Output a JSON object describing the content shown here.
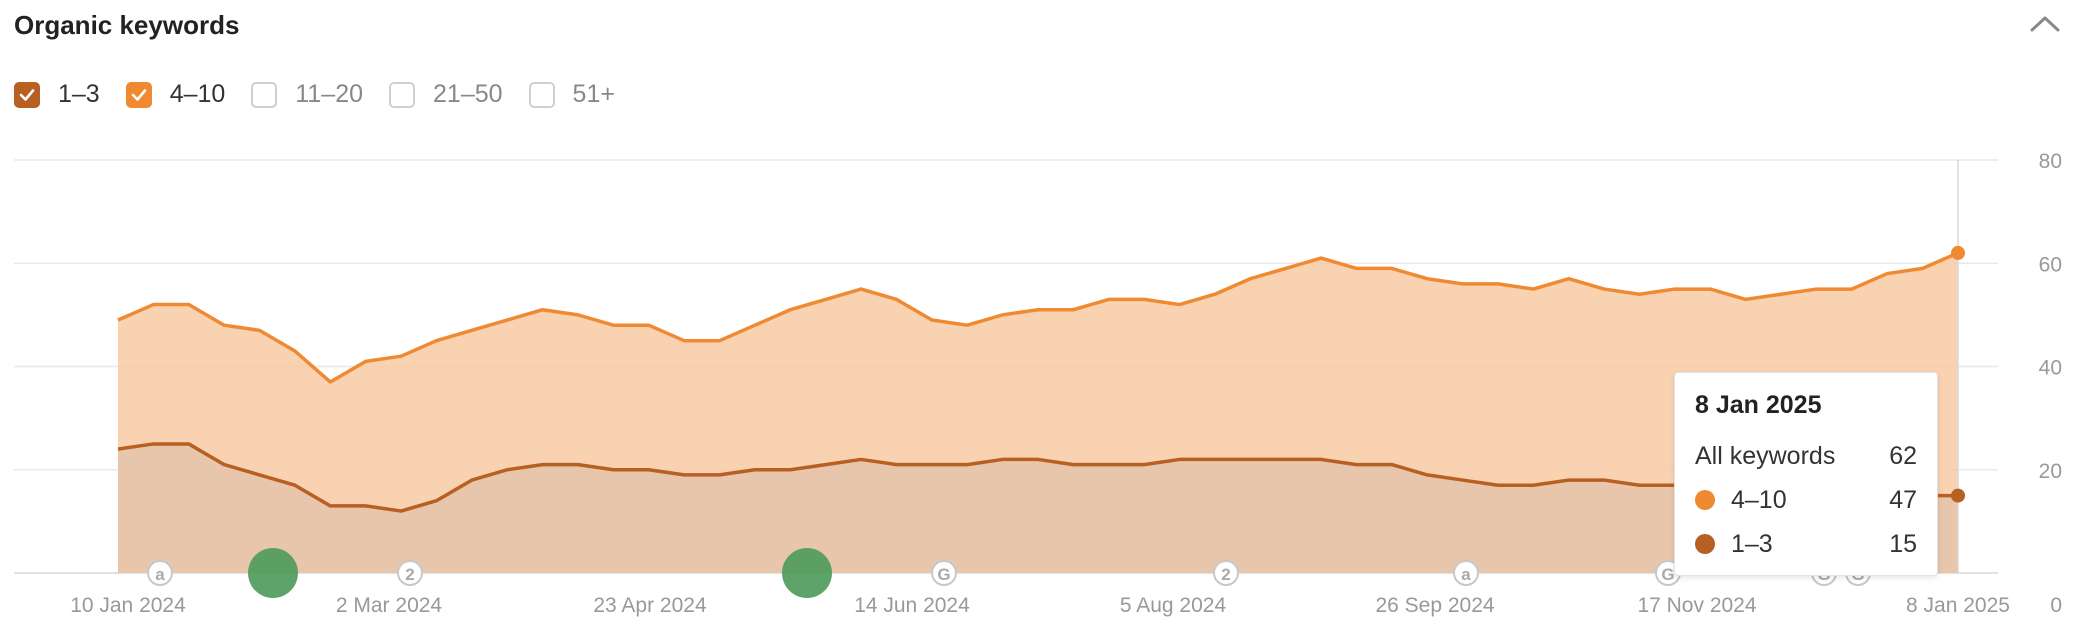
{
  "header": {
    "title": "Organic keywords"
  },
  "filters": [
    {
      "label": "1–3",
      "checked": true,
      "color": "#b85f22"
    },
    {
      "label": "4–10",
      "checked": true,
      "color": "#f08a32"
    },
    {
      "label": "11–20",
      "checked": false
    },
    {
      "label": "21–50",
      "checked": false
    },
    {
      "label": "51+",
      "checked": false
    }
  ],
  "tooltip": {
    "date": "8 Jan 2025",
    "rows": [
      {
        "label": "All keywords",
        "value": "62"
      },
      {
        "label": "4–10",
        "value": "47",
        "color": "#f08a32"
      },
      {
        "label": "1–3",
        "value": "15",
        "color": "#b85f22"
      }
    ]
  },
  "chart_data": {
    "type": "area",
    "stacked": true,
    "x_tick_labels": [
      "10 Jan 2024",
      "2 Mar 2024",
      "23 Apr 2024",
      "14 Jun 2024",
      "5 Aug 2024",
      "26 Sep 2024",
      "17 Nov 2024",
      "8 Jan 2025"
    ],
    "y_tick_labels": [
      "0",
      "20",
      "40",
      "60",
      "80"
    ],
    "ylim": [
      0,
      80
    ],
    "grid": true,
    "y_axis_position": "right",
    "dates": [
      "10 Jan 2024",
      "17 Jan 2024",
      "24 Jan 2024",
      "31 Jan 2024",
      "7 Feb 2024",
      "14 Feb 2024",
      "21 Feb 2024",
      "28 Feb 2024",
      "6 Mar 2024",
      "13 Mar 2024",
      "20 Mar 2024",
      "27 Mar 2024",
      "3 Apr 2024",
      "10 Apr 2024",
      "17 Apr 2024",
      "24 Apr 2024",
      "1 May 2024",
      "8 May 2024",
      "15 May 2024",
      "22 May 2024",
      "29 May 2024",
      "5 Jun 2024",
      "12 Jun 2024",
      "19 Jun 2024",
      "26 Jun 2024",
      "3 Jul 2024",
      "10 Jul 2024",
      "17 Jul 2024",
      "24 Jul 2024",
      "31 Jul 2024",
      "7 Aug 2024",
      "14 Aug 2024",
      "21 Aug 2024",
      "28 Aug 2024",
      "4 Sep 2024",
      "11 Sep 2024",
      "18 Sep 2024",
      "25 Sep 2024",
      "2 Oct 2024",
      "9 Oct 2024",
      "16 Oct 2024",
      "23 Oct 2024",
      "30 Oct 2024",
      "6 Nov 2024",
      "13 Nov 2024",
      "20 Nov 2024",
      "27 Nov 2024",
      "4 Dec 2024",
      "11 Dec 2024",
      "18 Dec 2024",
      "25 Dec 2024",
      "1 Jan 2025",
      "8 Jan 2025"
    ],
    "series": [
      {
        "name": "1–3",
        "color": "#b85f22",
        "values": [
          24,
          25,
          25,
          21,
          19,
          17,
          13,
          13,
          12,
          14,
          18,
          20,
          21,
          21,
          20,
          20,
          19,
          19,
          20,
          20,
          21,
          22,
          21,
          21,
          21,
          22,
          22,
          21,
          21,
          21,
          22,
          22,
          22,
          22,
          22,
          21,
          21,
          19,
          18,
          17,
          17,
          18,
          18,
          17,
          17,
          16,
          15,
          15,
          15,
          15,
          15,
          15,
          15
        ]
      },
      {
        "name": "4–10",
        "color": "#f08a32",
        "values": [
          25,
          27,
          27,
          27,
          28,
          26,
          24,
          28,
          30,
          31,
          29,
          29,
          30,
          29,
          28,
          28,
          26,
          26,
          28,
          31,
          32,
          33,
          32,
          28,
          27,
          28,
          29,
          30,
          32,
          32,
          30,
          32,
          35,
          37,
          39,
          38,
          38,
          38,
          38,
          39,
          38,
          39,
          37,
          37,
          38,
          39,
          38,
          39,
          40,
          40,
          43,
          44,
          47
        ]
      }
    ]
  },
  "timeline_markers": [
    "a",
    "2",
    "G",
    "2",
    "a",
    "G",
    "G",
    "G"
  ]
}
